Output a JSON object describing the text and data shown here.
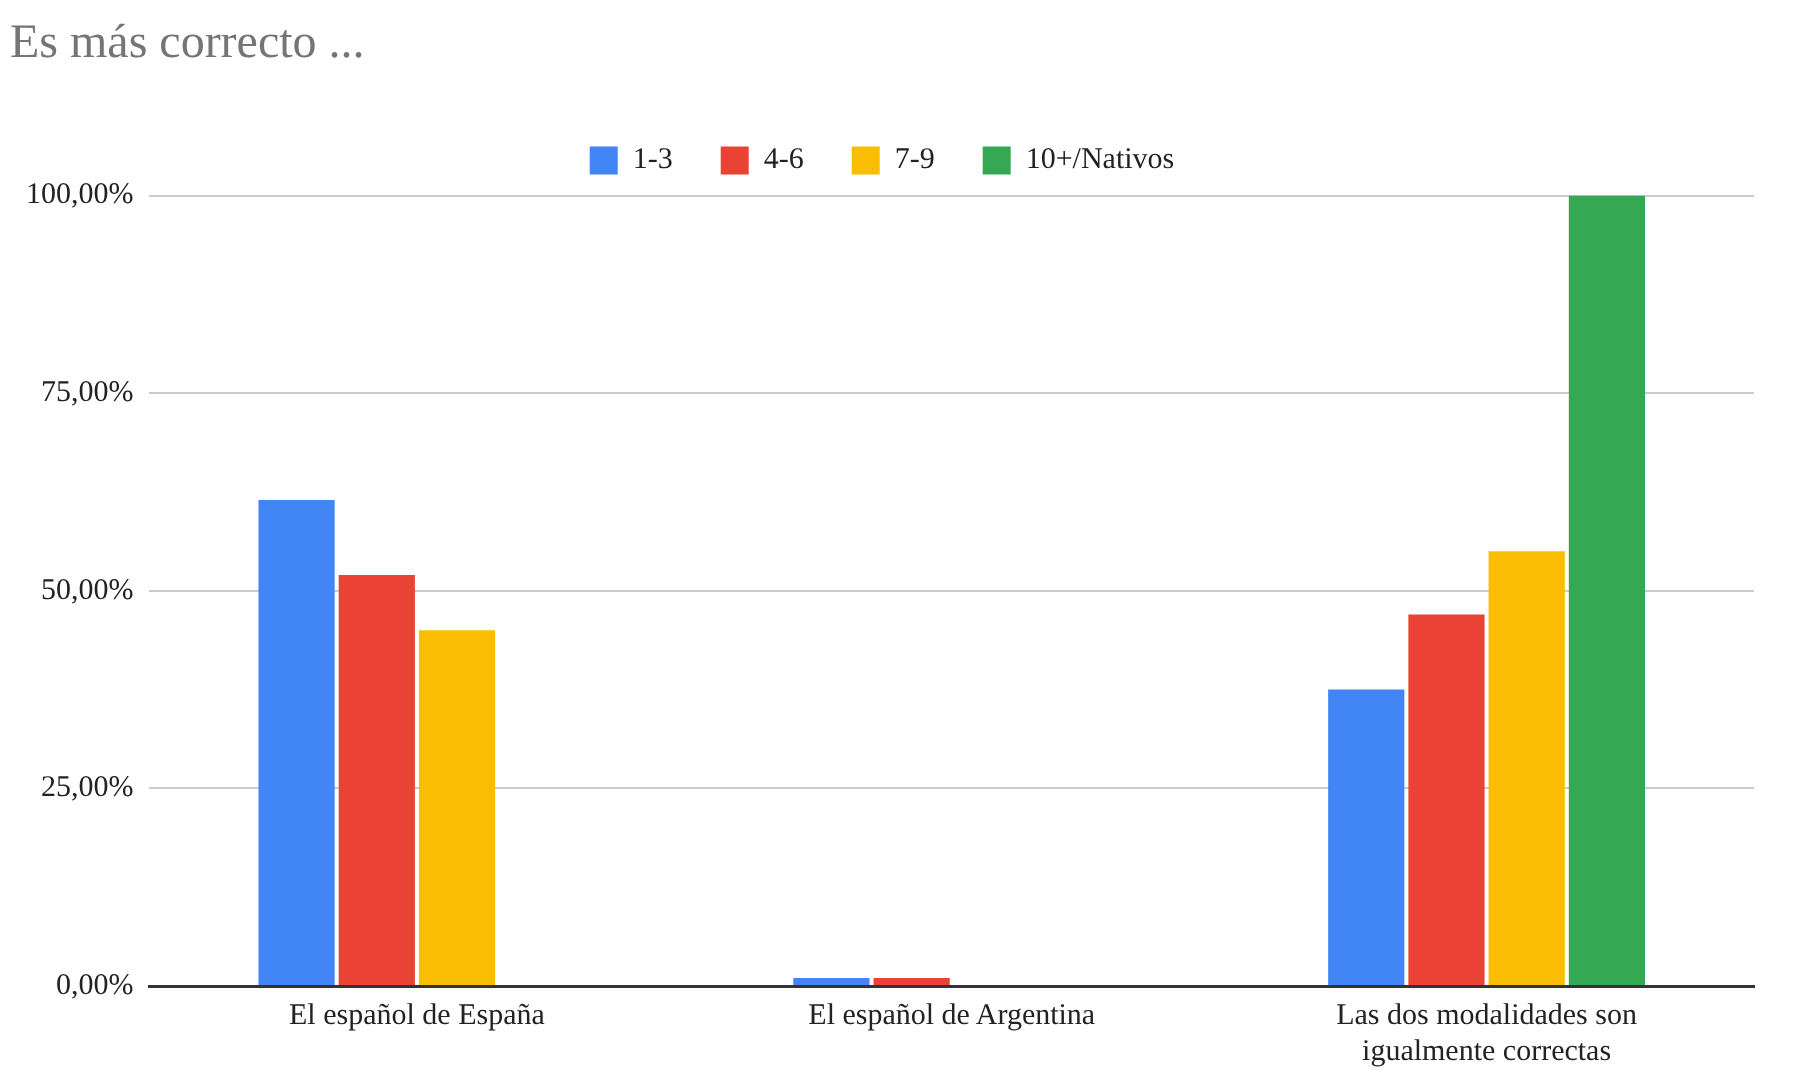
{
  "chart_data": {
    "type": "bar",
    "title": "Es más correcto ...",
    "categories": [
      "El español de España",
      "El español de Argentina",
      "Las dos modalidades son igualmente correctas"
    ],
    "series": [
      {
        "name": "1-3",
        "color": "#4285f4",
        "values": [
          61.5,
          1,
          37.5
        ]
      },
      {
        "name": "4-6",
        "color": "#ea4335",
        "values": [
          52,
          1,
          47
        ]
      },
      {
        "name": "7-9",
        "color": "#fbbc04",
        "values": [
          45,
          0,
          55
        ]
      },
      {
        "name": "10+/Nativos",
        "color": "#34a853",
        "values": [
          0,
          0,
          100
        ]
      }
    ],
    "ylim": [
      0,
      100
    ],
    "yticks": [
      {
        "value": 0,
        "label": "0,00%"
      },
      {
        "value": 25,
        "label": "25,00%"
      },
      {
        "value": 50,
        "label": "50,00%"
      },
      {
        "value": 75,
        "label": "75,00%"
      },
      {
        "value": 100,
        "label": "100,00%"
      }
    ],
    "grid": "y",
    "legend": "top"
  }
}
